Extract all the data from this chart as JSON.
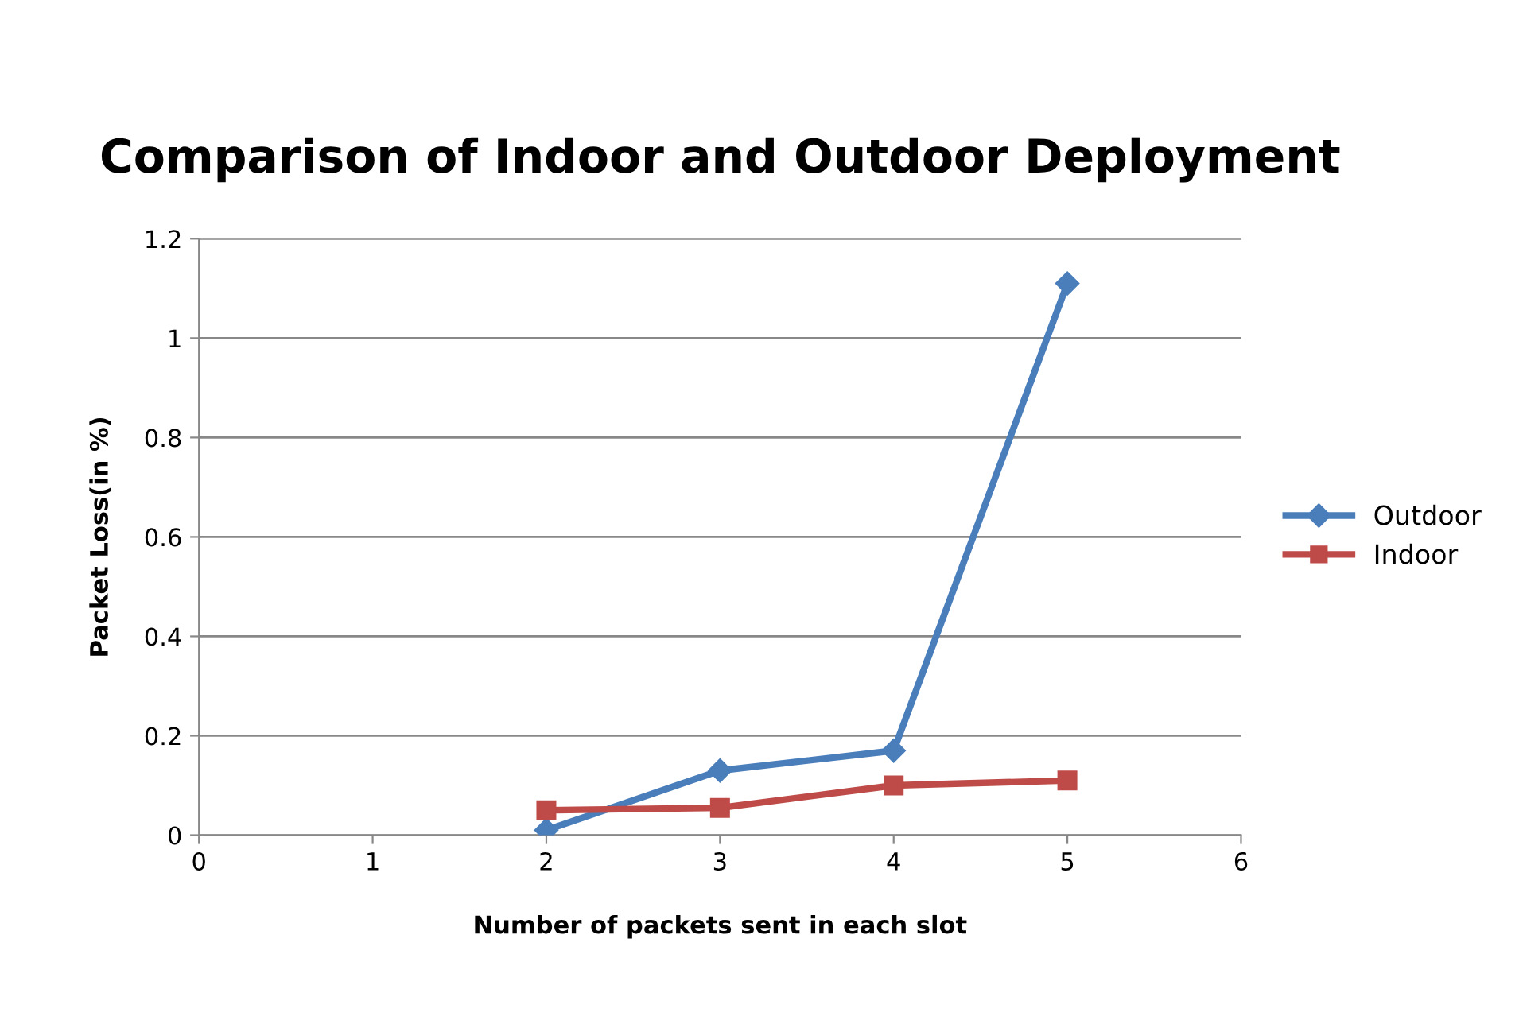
{
  "chart_data": {
    "type": "line",
    "title": "Comparison of Indoor and Outdoor Deployment",
    "xlabel": "Number of packets sent in each slot",
    "ylabel": "Packet Loss(in %)",
    "x": [
      2,
      3,
      4,
      5
    ],
    "series": [
      {
        "name": "Outdoor",
        "color": "#4a7ebb",
        "marker": "diamond",
        "values": [
          0.01,
          0.13,
          0.17,
          1.11
        ]
      },
      {
        "name": "Indoor",
        "color": "#be4b48",
        "marker": "square",
        "values": [
          0.05,
          0.055,
          0.1,
          0.11
        ]
      }
    ],
    "xlim": [
      0,
      6
    ],
    "xticks": [
      0,
      1,
      2,
      3,
      4,
      5,
      6
    ],
    "ylim": [
      0,
      1.2
    ],
    "yticks": [
      0,
      0.2,
      0.4,
      0.6,
      0.8,
      1,
      1.2
    ],
    "grid": "y",
    "legend": "right",
    "line_style": "solid"
  }
}
